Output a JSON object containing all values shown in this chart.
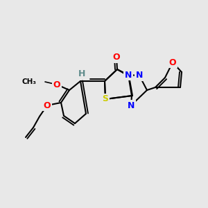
{
  "bg_color": "#e8e8e8",
  "atom_colors": {
    "O": "#ff0000",
    "N": "#0000ff",
    "S": "#cccc00",
    "C": "#000000",
    "H": "#5f8b8b"
  },
  "bond_color": "#000000",
  "figsize": [
    3.0,
    3.0
  ],
  "dpi": 100
}
